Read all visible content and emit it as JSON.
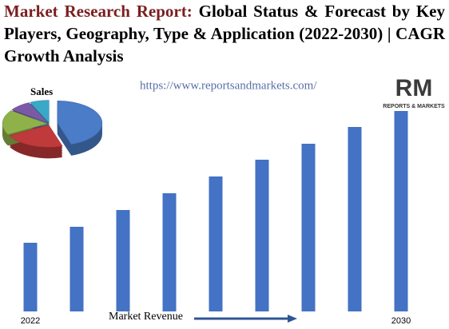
{
  "header": {
    "highlight": "Market Research Report:",
    "title": "Global Status & Forecast by Key Players, Geography, Type & Application (2022-2030) | CAGR Growth Analysis"
  },
  "watermark": "https://www.reportsandmarkets.com/",
  "logo": {
    "mark": "RM",
    "name": "REPORTS & MARKETS"
  },
  "chart_data": [
    {
      "type": "bar",
      "x_label": "Market Revenue",
      "color": "#4472c4",
      "categories": [
        "2022",
        null,
        null,
        null,
        null,
        null,
        null,
        null,
        "2030"
      ],
      "values": [
        86,
        106,
        127,
        148,
        169,
        190,
        210,
        231,
        251
      ]
    },
    {
      "type": "pie",
      "title": "Sales",
      "values": [
        45,
        22,
        18,
        8,
        7
      ],
      "colors": [
        "#4a7cc7",
        "#c0393b",
        "#8fb14a",
        "#7a5aa6",
        "#3aa9c8"
      ]
    }
  ]
}
